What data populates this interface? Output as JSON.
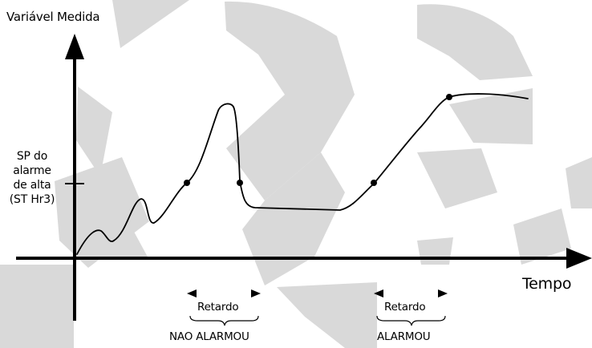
{
  "colors": {
    "background": "#ffffff",
    "ink": "#000000",
    "watermark": "#d9d9d9"
  },
  "axes": {
    "y_label": "Variável Medida",
    "x_label": "Tempo"
  },
  "setpoint": {
    "lines": [
      "SP do",
      "alarme",
      "de alta",
      "(ST Hr3)"
    ]
  },
  "delays": [
    {
      "label": "Retardo",
      "result": "NAO ALARMOU"
    },
    {
      "label": "Retardo",
      "result": "ALARMOU"
    }
  ]
}
